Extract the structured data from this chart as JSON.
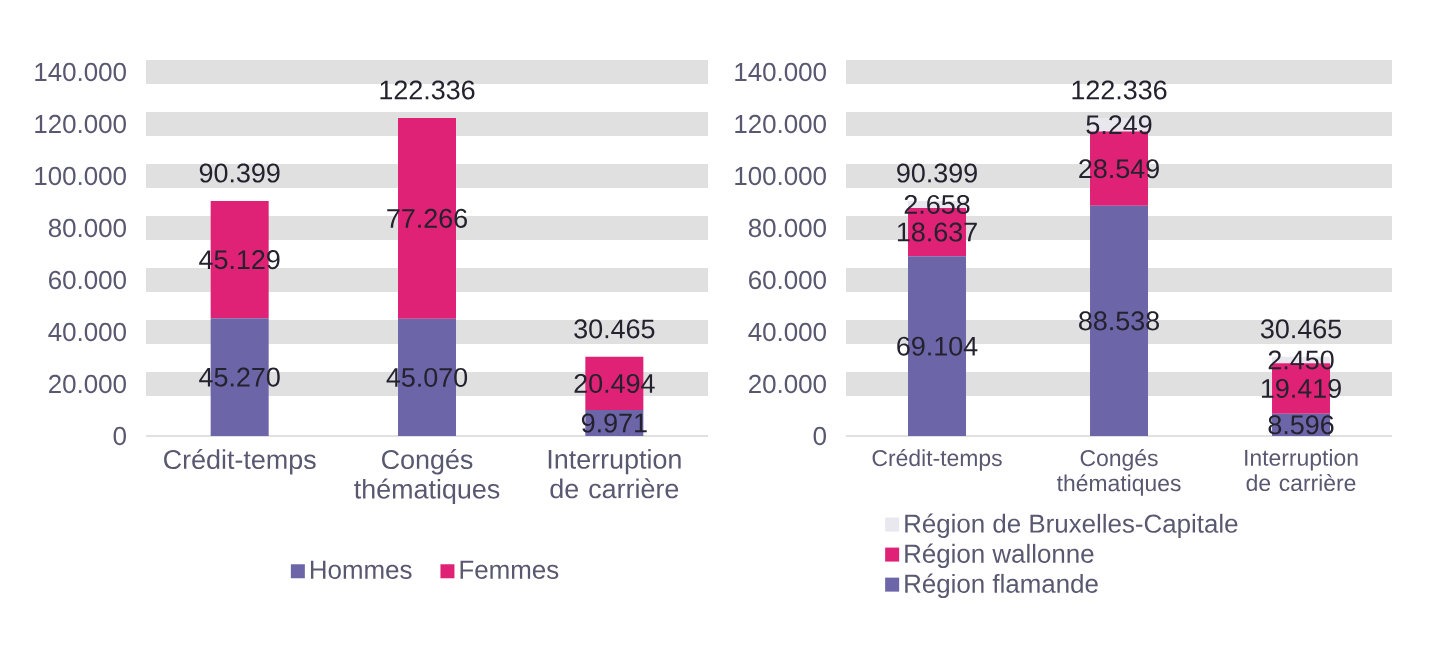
{
  "chart_data": [
    {
      "type": "bar",
      "stacked": true,
      "categories": [
        "Crédit-temps",
        "Congés thématiques",
        "Interruption de carrière"
      ],
      "series": [
        {
          "name": "Hommes",
          "color": "#6c65a8",
          "values": [
            45270,
            45070,
            9971
          ],
          "value_labels": [
            "45.270",
            "45.070",
            "9.971"
          ]
        },
        {
          "name": "Femmes",
          "color": "#df2275",
          "values": [
            45129,
            77266,
            20494
          ],
          "value_labels": [
            "45.129",
            "77.266",
            "20.494"
          ]
        }
      ],
      "totals": [
        "90.399",
        "122.336",
        "30.465"
      ],
      "ylim": [
        0,
        140000
      ],
      "yticks": [
        {
          "value": 0,
          "label": "0"
        },
        {
          "value": 20000,
          "label": "20.000"
        },
        {
          "value": 40000,
          "label": "40.000"
        },
        {
          "value": 60000,
          "label": "60.000"
        },
        {
          "value": 80000,
          "label": "80.000"
        },
        {
          "value": 100000,
          "label": "100.000"
        },
        {
          "value": 120000,
          "label": "120.000"
        },
        {
          "value": 140000,
          "label": "140.000"
        }
      ],
      "grid": "y",
      "legend": "bottom"
    },
    {
      "type": "bar",
      "stacked": true,
      "categories": [
        "Crédit-temps",
        "Congés thématiques",
        "Interruption de carrière"
      ],
      "series": [
        {
          "name": "Région flamande",
          "color": "#6c65a8",
          "values": [
            69104,
            88538,
            8596
          ],
          "value_labels": [
            "69.104",
            "88.538",
            "8.596"
          ]
        },
        {
          "name": "Région wallonne",
          "color": "#df2275",
          "values": [
            18637,
            28549,
            19419
          ],
          "value_labels": [
            "18.637",
            "28.549",
            "19.419"
          ]
        },
        {
          "name": "Région de Bruxelles-Capitale",
          "color": "#e8e8ee",
          "values": [
            2658,
            5249,
            2450
          ],
          "value_labels": [
            "2.658",
            "5.249",
            "2.450"
          ]
        }
      ],
      "totals": [
        "90.399",
        "122.336",
        "30.465"
      ],
      "ylim": [
        0,
        140000
      ],
      "yticks": [
        {
          "value": 0,
          "label": "0"
        },
        {
          "value": 20000,
          "label": "20.000"
        },
        {
          "value": 40000,
          "label": "40.000"
        },
        {
          "value": 60000,
          "label": "60.000"
        },
        {
          "value": 80000,
          "label": "80.000"
        },
        {
          "value": 100000,
          "label": "100.000"
        },
        {
          "value": 120000,
          "label": "120.000"
        },
        {
          "value": 140000,
          "label": "140.000"
        }
      ],
      "grid": "y",
      "legend": "bottom left"
    }
  ]
}
